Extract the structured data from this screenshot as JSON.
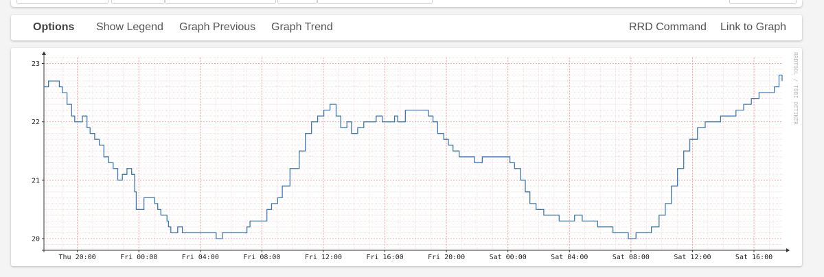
{
  "toolbar": {
    "options_label": "Options",
    "show_legend_label": "Show Legend",
    "graph_previous_label": "Graph Previous",
    "graph_trend_label": "Graph Trend",
    "rrd_command_label": "RRD Command",
    "link_to_graph_label": "Link to Graph"
  },
  "colors": {
    "series": "#3c78b4",
    "major_grid": "#f2a8a8",
    "minor_grid": "#f6dcdc"
  },
  "chart_data": {
    "type": "line",
    "title": "",
    "xlabel": "",
    "ylabel": "",
    "side_label": "RRDTOOL / TOBI OETIKER",
    "ylim": [
      19.8,
      23.1
    ],
    "yticks": [
      20,
      21,
      22,
      23
    ],
    "grid": true,
    "xlim": [
      "Thu 17:50",
      "Sat 17:50"
    ],
    "xtick_labels": [
      "Thu 20:00",
      "Fri 00:00",
      "Fri 04:00",
      "Fri 08:00",
      "Fri 12:00",
      "Fri 16:00",
      "Fri 20:00",
      "Sat 00:00",
      "Sat 04:00",
      "Sat 08:00",
      "Sat 12:00",
      "Sat 16:00"
    ],
    "xtick_hours": [
      2.17,
      6.17,
      10.17,
      14.17,
      18.17,
      22.17,
      26.17,
      30.17,
      34.17,
      38.17,
      42.17,
      46.17
    ],
    "series": [
      {
        "name": "",
        "hours": [
          0,
          0.3,
          1.0,
          1.2,
          1.5,
          1.8,
          2.0,
          2.5,
          2.8,
          3.0,
          3.3,
          3.6,
          3.9,
          4.2,
          4.5,
          4.8,
          5.1,
          5.4,
          5.7,
          5.9,
          6.0,
          6.2,
          6.5,
          7.2,
          7.4,
          7.6,
          8.0,
          8.1,
          8.25,
          8.4,
          8.7,
          9.0,
          9.4,
          9.8,
          10.2,
          10.7,
          11.2,
          11.6,
          13.0,
          13.2,
          13.4,
          14.5,
          14.8,
          15.2,
          15.5,
          16.0,
          16.6,
          17.0,
          17.4,
          17.8,
          18.2,
          18.6,
          19.0,
          19.3,
          19.7,
          20.0,
          20.4,
          20.8,
          21.2,
          21.6,
          22.0,
          22.4,
          22.8,
          23.0,
          23.5,
          24.5,
          25.0,
          25.3,
          25.6,
          26.0,
          26.3,
          26.6,
          27.0,
          27.5,
          28.0,
          28.2,
          28.5,
          30.0,
          30.3,
          30.6,
          31.0,
          31.3,
          31.6,
          32.0,
          32.5,
          33.0,
          33.5,
          34.5,
          35.0,
          36.0,
          37.0,
          37.5,
          38.0,
          38.5,
          39.0,
          39.5,
          40.0,
          40.4,
          40.8,
          41.2,
          41.6,
          42.0,
          42.5,
          43.0,
          44.0,
          45.0,
          45.5,
          46.0,
          46.5,
          47.0,
          47.5,
          47.8,
          48.0
        ],
        "values": [
          22.6,
          22.7,
          22.6,
          22.5,
          22.3,
          22.1,
          22.0,
          22.1,
          21.9,
          21.8,
          21.7,
          21.6,
          21.4,
          21.3,
          21.2,
          21.0,
          21.1,
          21.2,
          21.1,
          20.8,
          20.5,
          20.5,
          20.7,
          20.6,
          20.5,
          20.4,
          20.3,
          20.2,
          20.1,
          20.1,
          20.2,
          20.1,
          20.1,
          20.1,
          20.1,
          20.1,
          20.0,
          20.1,
          20.1,
          20.2,
          20.3,
          20.5,
          20.6,
          20.7,
          20.9,
          21.2,
          21.5,
          21.8,
          22.0,
          22.1,
          22.2,
          22.3,
          22.1,
          21.9,
          22.0,
          21.8,
          21.9,
          22.0,
          22.0,
          22.1,
          22.0,
          22.0,
          22.1,
          22.0,
          22.2,
          22.2,
          22.1,
          22.0,
          21.8,
          21.7,
          21.6,
          21.5,
          21.4,
          21.4,
          21.3,
          21.3,
          21.4,
          21.4,
          21.3,
          21.2,
          21.0,
          20.8,
          20.6,
          20.5,
          20.4,
          20.4,
          20.3,
          20.4,
          20.3,
          20.2,
          20.1,
          20.1,
          20.0,
          20.1,
          20.1,
          20.2,
          20.4,
          20.6,
          20.9,
          21.2,
          21.5,
          21.7,
          21.9,
          22.0,
          22.1,
          22.2,
          22.3,
          22.4,
          22.5,
          22.5,
          22.6,
          22.8,
          22.7
        ]
      }
    ]
  }
}
